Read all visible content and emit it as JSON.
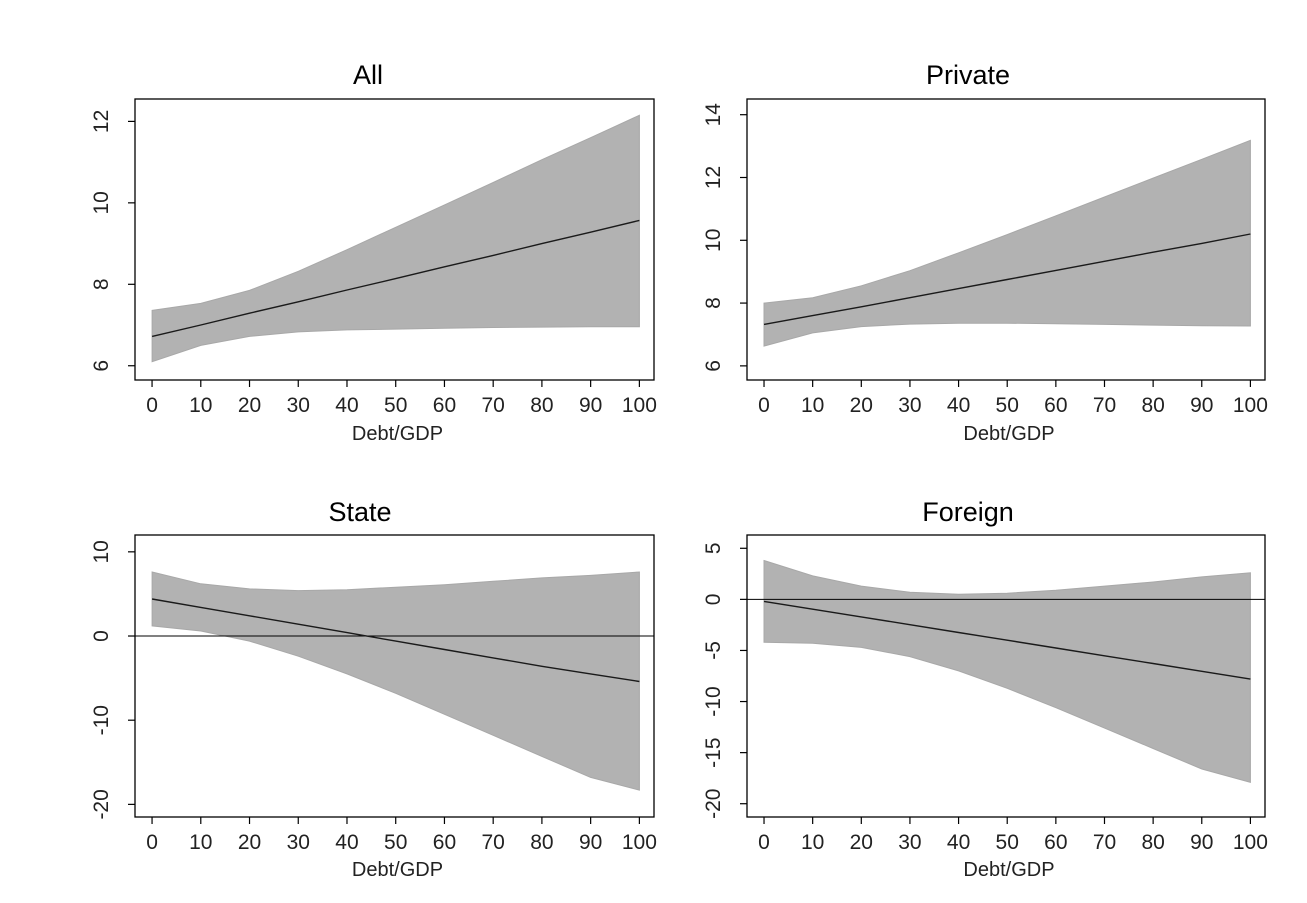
{
  "chart_data": [
    {
      "type": "area",
      "title": "All",
      "xlabel": "Debt/GDP",
      "ylabel": "",
      "xlim": [
        -3.5,
        103
      ],
      "ylim": [
        5.65,
        12.55
      ],
      "x_ticks": [
        0,
        10,
        20,
        30,
        40,
        50,
        60,
        70,
        80,
        90,
        100
      ],
      "x_tick_labels": [
        "0",
        "10",
        "20",
        "30",
        "40",
        "50",
        "60",
        "70",
        "80",
        "90",
        "100"
      ],
      "y_ticks": [
        6,
        8,
        10,
        12
      ],
      "y_tick_labels": [
        "6",
        "8",
        "10",
        "12"
      ],
      "reference_line": null,
      "x": [
        0,
        10,
        20,
        30,
        40,
        50,
        60,
        70,
        80,
        90,
        100
      ],
      "series": [
        {
          "values": [
            6.72,
            7.0,
            7.29,
            7.57,
            7.86,
            8.14,
            8.43,
            8.71,
            9.0,
            9.28,
            9.57
          ]
        }
      ],
      "band_upper": [
        7.36,
        7.53,
        7.85,
        8.32,
        8.85,
        9.4,
        9.95,
        10.5,
        11.06,
        11.6,
        12.15
      ],
      "band_lower": [
        6.1,
        6.5,
        6.72,
        6.83,
        6.88,
        6.9,
        6.92,
        6.94,
        6.95,
        6.96,
        6.96
      ]
    },
    {
      "type": "area",
      "title": "Private",
      "xlabel": "Debt/GDP",
      "ylabel": "",
      "xlim": [
        -3.5,
        103
      ],
      "ylim": [
        5.55,
        14.5
      ],
      "x_ticks": [
        0,
        10,
        20,
        30,
        40,
        50,
        60,
        70,
        80,
        90,
        100
      ],
      "x_tick_labels": [
        "0",
        "10",
        "20",
        "30",
        "40",
        "50",
        "60",
        "70",
        "80",
        "90",
        "100"
      ],
      "y_ticks": [
        6,
        8,
        10,
        12,
        14
      ],
      "y_tick_labels": [
        "6",
        "8",
        "10",
        "12",
        "14"
      ],
      "reference_line": null,
      "x": [
        0,
        10,
        20,
        30,
        40,
        50,
        60,
        70,
        80,
        90,
        100
      ],
      "series": [
        {
          "values": [
            7.32,
            7.6,
            7.88,
            8.17,
            8.46,
            8.75,
            9.04,
            9.33,
            9.62,
            9.9,
            10.2
          ]
        }
      ],
      "band_upper": [
        8.0,
        8.17,
        8.55,
        9.03,
        9.6,
        10.18,
        10.78,
        11.38,
        11.98,
        12.58,
        13.18
      ],
      "band_lower": [
        6.63,
        7.05,
        7.25,
        7.33,
        7.36,
        7.36,
        7.34,
        7.32,
        7.3,
        7.28,
        7.27
      ]
    },
    {
      "type": "area",
      "title": "State",
      "xlabel": "Debt/GDP",
      "ylabel": "",
      "xlim": [
        -3.5,
        103
      ],
      "ylim": [
        -21.5,
        12.0
      ],
      "x_ticks": [
        0,
        10,
        20,
        30,
        40,
        50,
        60,
        70,
        80,
        90,
        100
      ],
      "x_tick_labels": [
        "0",
        "10",
        "20",
        "30",
        "40",
        "50",
        "60",
        "70",
        "80",
        "90",
        "100"
      ],
      "y_ticks": [
        -20,
        -10,
        0,
        10
      ],
      "y_tick_labels": [
        "-20",
        "-10",
        "0",
        "10"
      ],
      "reference_line": 0,
      "x": [
        0,
        10,
        20,
        30,
        40,
        50,
        60,
        70,
        80,
        90,
        100
      ],
      "series": [
        {
          "values": [
            4.4,
            3.4,
            2.4,
            1.4,
            0.4,
            -0.6,
            -1.6,
            -2.6,
            -3.6,
            -4.5,
            -5.4
          ]
        }
      ],
      "band_upper": [
        7.6,
        6.2,
        5.6,
        5.4,
        5.5,
        5.8,
        6.1,
        6.5,
        6.9,
        7.2,
        7.6
      ],
      "band_lower": [
        1.2,
        0.6,
        -0.6,
        -2.4,
        -4.5,
        -6.8,
        -9.3,
        -11.8,
        -14.3,
        -16.8,
        -18.3
      ]
    },
    {
      "type": "area",
      "title": "Foreign",
      "xlabel": "Debt/GDP",
      "ylabel": "",
      "xlim": [
        -3.5,
        103
      ],
      "ylim": [
        -21.3,
        6.3
      ],
      "x_ticks": [
        0,
        10,
        20,
        30,
        40,
        50,
        60,
        70,
        80,
        90,
        100
      ],
      "x_tick_labels": [
        "0",
        "10",
        "20",
        "30",
        "40",
        "50",
        "60",
        "70",
        "80",
        "90",
        "100"
      ],
      "y_ticks": [
        -20,
        -15,
        -10,
        -5,
        0,
        5
      ],
      "y_tick_labels": [
        "-20",
        "-15",
        "-10",
        "-5",
        "0",
        "5"
      ],
      "reference_line": 0,
      "x": [
        0,
        10,
        20,
        30,
        40,
        50,
        60,
        70,
        80,
        90,
        100
      ],
      "series": [
        {
          "values": [
            -0.2,
            -0.96,
            -1.72,
            -2.48,
            -3.24,
            -4.0,
            -4.76,
            -5.52,
            -6.28,
            -7.04,
            -7.8
          ]
        }
      ],
      "band_upper": [
        3.8,
        2.3,
        1.3,
        0.7,
        0.5,
        0.6,
        0.9,
        1.3,
        1.7,
        2.2,
        2.6
      ],
      "band_lower": [
        -4.2,
        -4.3,
        -4.7,
        -5.6,
        -7.0,
        -8.7,
        -10.6,
        -12.6,
        -14.6,
        -16.6,
        -17.9
      ]
    }
  ]
}
